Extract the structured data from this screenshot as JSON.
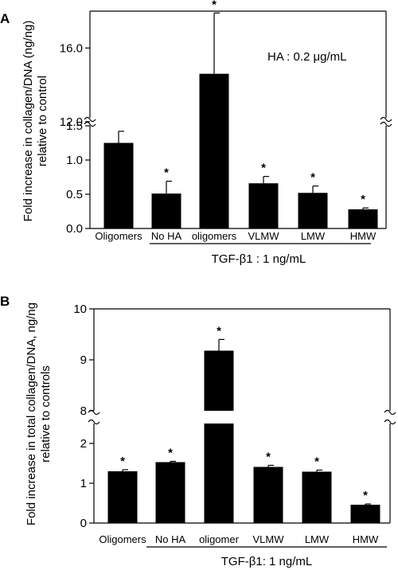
{
  "chart_data": [
    {
      "panel_label": "A",
      "type": "bar",
      "ylabel_line1": "Fold increase in collagen/DNA (ng/ng)",
      "ylabel_line2": "relative to control",
      "annotation": "HA : 0.2 μg/mL",
      "group_label": "TGF-β1 : 1 ng/mL",
      "categories": [
        "Oligomers",
        "No HA",
        "oligomers",
        "VLMW",
        "LMW",
        "HMW"
      ],
      "values": [
        1.25,
        0.51,
        14.6,
        0.66,
        0.52,
        0.28
      ],
      "errors": [
        0.17,
        0.18,
        3.3,
        0.1,
        0.1,
        0.02
      ],
      "significant": [
        false,
        true,
        true,
        true,
        true,
        true
      ],
      "significance_marker": "*",
      "y_ticks_lower": [
        "0.0",
        "0.5",
        "1.0",
        "1.5"
      ],
      "y_ticks_upper": [
        "12.0",
        "16.0"
      ],
      "ylim_lower": [
        0,
        1.5
      ],
      "ylim_upper": [
        11,
        18
      ],
      "broken_axis": true
    },
    {
      "panel_label": "B",
      "type": "bar",
      "ylabel_line1": "Fold increase in total collagen/DNA, ng/ng",
      "ylabel_line2": "relative to controls",
      "group_label": "TGF-β1: 1 ng/mL",
      "categories": [
        "Oligomers",
        "No HA",
        "oligomer",
        "VLMW",
        "LMW",
        "HMW"
      ],
      "values": [
        1.3,
        1.53,
        9.18,
        1.41,
        1.29,
        0.46
      ],
      "errors": [
        0.04,
        0.02,
        0.22,
        0.04,
        0.04,
        0.02
      ],
      "significant": [
        true,
        true,
        true,
        true,
        true,
        true
      ],
      "significance_marker": "*",
      "y_ticks_lower": [
        "0",
        "1",
        "2"
      ],
      "y_ticks_upper": [
        "8",
        "9",
        "10"
      ],
      "ylim_lower": [
        0,
        2.5
      ],
      "ylim_upper": [
        8,
        10
      ],
      "broken_axis": true
    }
  ]
}
